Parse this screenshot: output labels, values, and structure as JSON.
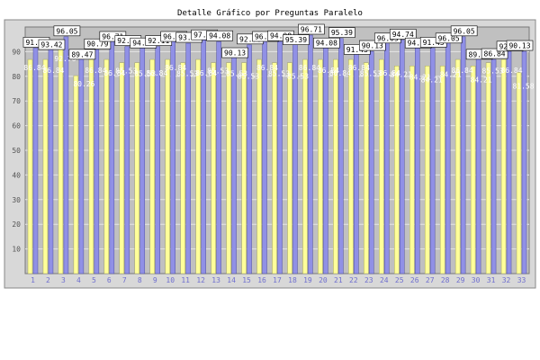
{
  "chart_data": {
    "type": "bar",
    "title": "Detalle Gráfico por Preguntas Paralelo",
    "xlabel": "",
    "ylabel": "",
    "ylim": [
      0,
      100
    ],
    "yticks": [
      10,
      20,
      30,
      40,
      50,
      60,
      70,
      80,
      90
    ],
    "grid": true,
    "colors": {
      "series_1": "#9090e6",
      "series_2": "#ffff99",
      "plot_bg": "#c0c0c0",
      "frame_bg": "#d8d8d8",
      "label_box": "#ffffff"
    },
    "categories": [
      "1",
      "2",
      "3",
      "4",
      "5",
      "6",
      "7",
      "8",
      "9",
      "10",
      "11",
      "12",
      "13",
      "14",
      "15",
      "16",
      "17",
      "18",
      "19",
      "20",
      "21",
      "22",
      "23",
      "24",
      "25",
      "26",
      "27",
      "28",
      "29",
      "30",
      "31",
      "32",
      "33"
    ],
    "series": [
      {
        "values": [
          91.45,
          93.42,
          96.05,
          89.47,
          90.79,
          96.71,
          92.11,
          94.08,
          92.11,
          96.71,
          93.42,
          97.37,
          94.08,
          90.13,
          92.76,
          96.71,
          94.08,
          95.39,
          96.71,
          94.08,
          95.39,
          91.45,
          90.13,
          96.05,
          94.74,
          94.08,
          91.45,
          96.05,
          96.05,
          89.47,
          86.84,
          92.76,
          90.13
        ]
      },
      {
        "values": [
          86.84,
          86.84,
          92.76,
          80.26,
          86.84,
          86.84,
          85.53,
          85.53,
          86.84,
          86.84,
          85.53,
          86.84,
          85.53,
          85.53,
          85.53,
          86.84,
          85.53,
          85.53,
          86.84,
          86.84,
          86.84,
          86.84,
          85.53,
          86.84,
          84.21,
          84.21,
          84.21,
          84.21,
          86.84,
          84.21,
          85.53,
          86.84,
          81.58
        ]
      }
    ]
  }
}
